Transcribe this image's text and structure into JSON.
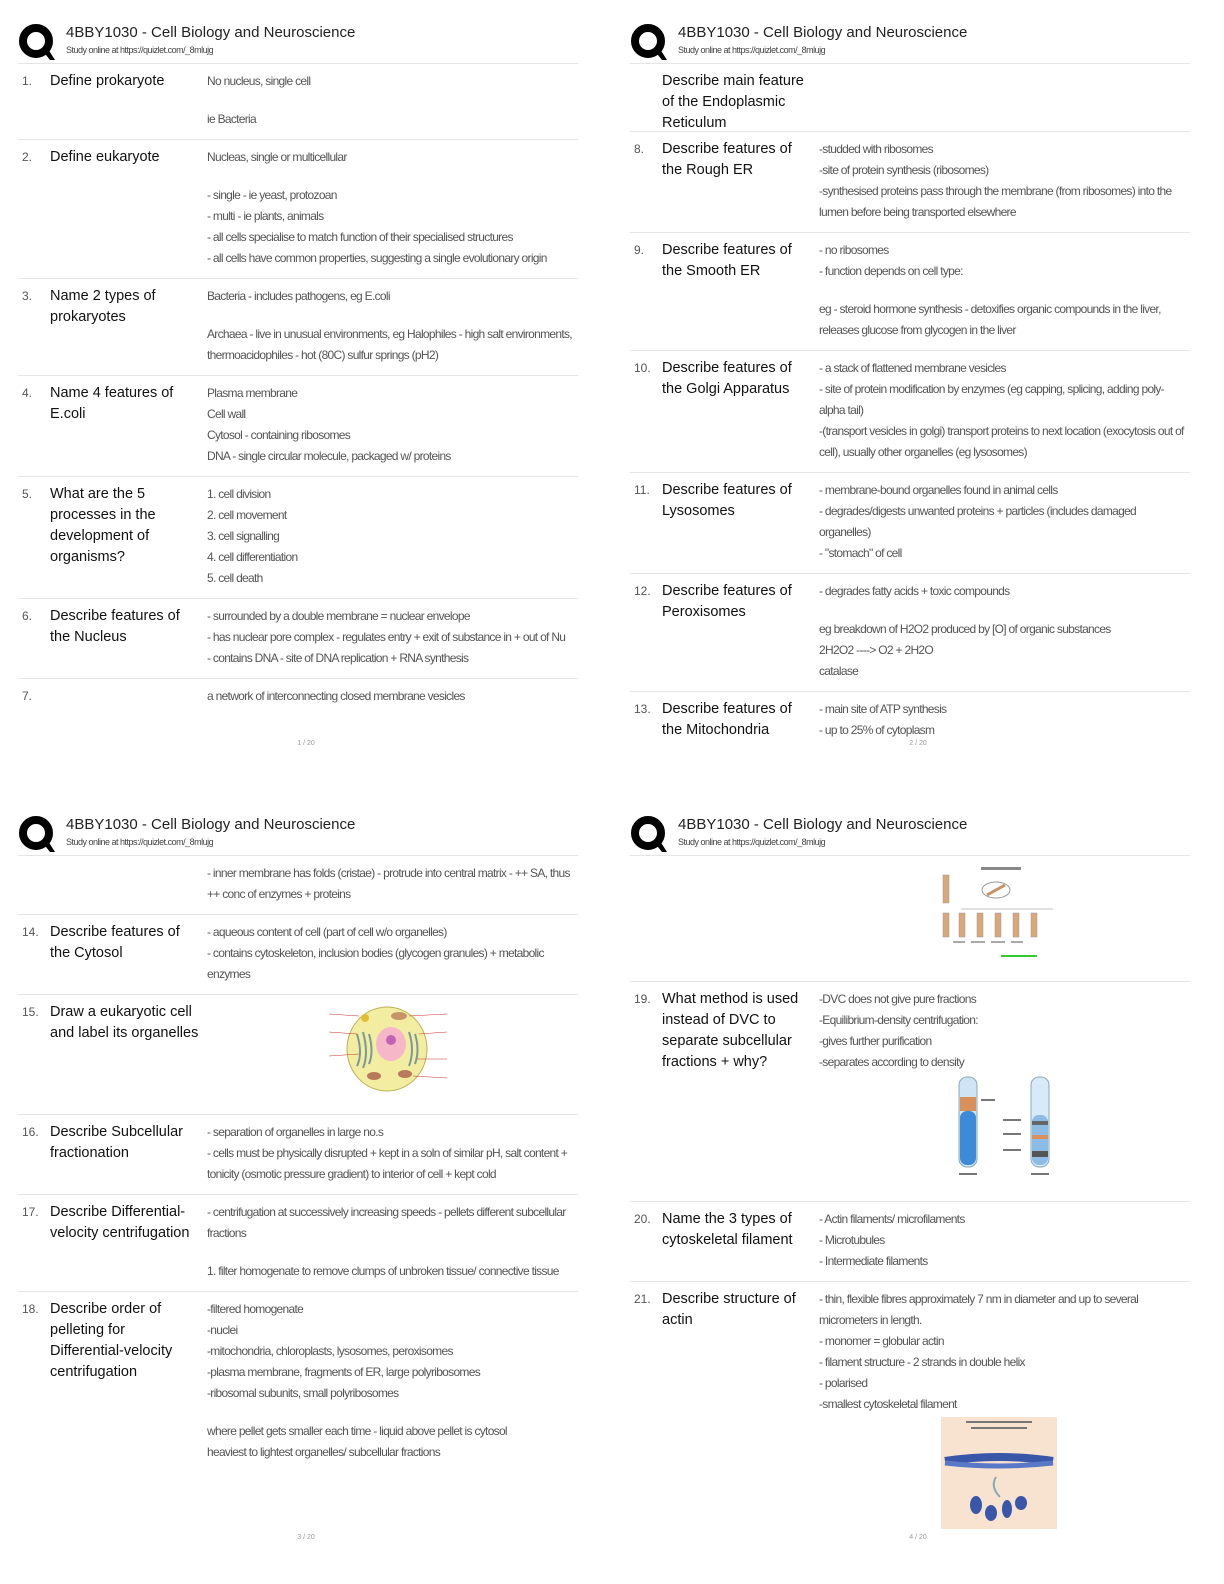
{
  "document": {
    "colors": {
      "text": "#111111",
      "answer": "#555555",
      "divider": "#e6e6e6",
      "logo": "#000000"
    },
    "pages": [
      {
        "header": {
          "title": "4BBY1030 - Cell Biology and Neuroscience",
          "subtitle": "Study online at https://quizlet.com/_8mlujg",
          "logo_icon": "quizlet-q-logo"
        },
        "page_number": "1 / 20",
        "rows": [
          {
            "num": "1.",
            "question": "Define prokaryote",
            "answer": [
              "No nucleus, single cell",
              "",
              "ie Bacteria"
            ]
          },
          {
            "num": "2.",
            "question": "Define eukaryote",
            "answer": [
              "Nucleas, single or multicellular",
              "",
              "- single - ie yeast, protozoan",
              "- multi - ie plants, animals",
              "- all cells specialise to match function of their specialised structures",
              "- all cells have common properties, suggesting a single evolutionary origin"
            ]
          },
          {
            "num": "3.",
            "question": "Name 2 types of prokaryotes",
            "answer": [
              "Bacteria - includes pathogens, eg E.coli",
              "",
              "Archaea - live in unusual environments, eg Halophiles - high salt environments, thermoacidophiles - hot (80C) sulfur springs (pH2)"
            ]
          },
          {
            "num": "4.",
            "question": "Name 4 features of E.coli",
            "answer": [
              "Plasma membrane",
              "Cell wall",
              "Cytosol - containing ribosomes",
              "DNA - single circular molecule, packaged w/ proteins"
            ]
          },
          {
            "num": "5.",
            "question": "What are the 5 processes in the development of organisms?",
            "answer": [
              "1. cell division",
              "2. cell movement",
              "3. cell signalling",
              "4. cell differentiation",
              "5. cell death"
            ]
          },
          {
            "num": "6.",
            "question": "Describe features of the Nucleus",
            "answer": [
              "- surrounded by a double membrane = nuclear envelope",
              "- has nuclear pore complex - regulates entry + exit of substance in + out of Nu",
              "- contains DNA - site of DNA replication + RNA synthesis"
            ]
          },
          {
            "num": "7.",
            "question": "",
            "answer": [
              "a network of interconnecting closed membrane vesicles"
            ]
          }
        ]
      },
      {
        "header": {
          "title": "4BBY1030 - Cell Biology and Neuroscience",
          "subtitle": "Study online at https://quizlet.com/_8mlujg",
          "logo_icon": "quizlet-q-logo"
        },
        "page_number": "2 / 20",
        "rows": [
          {
            "num": "",
            "question": "Describe main feature of the Endoplasmic Reticulum",
            "answer": [
              "",
              "",
              ""
            ]
          },
          {
            "num": "8.",
            "question": "Describe features of the Rough ER",
            "answer": [
              "-studded with ribosomes",
              "-site of protein synthesis (ribosomes)",
              "-synthesised proteins pass through the membrane (from ribosomes) into the lumen before being transported elsewhere"
            ]
          },
          {
            "num": "9.",
            "question": "Describe features of the Smooth ER",
            "answer": [
              "- no ribosomes",
              "- function depends on cell type:",
              "",
              "eg - steroid hormone synthesis - detoxifies organic compounds in the liver, releases glucose from glycogen in the liver"
            ]
          },
          {
            "num": "10.",
            "question": "Describe features of the Golgi Apparatus",
            "answer": [
              "- a stack of flattened membrane vesicles",
              "- site of protein modification by enzymes (eg capping, splicing, adding poly-alpha tail)",
              "-(transport vesicles in golgi) transport proteins to next location (exocytosis out of cell), usually other organelles (eg lysosomes)"
            ]
          },
          {
            "num": "11.",
            "question": "Describe features of Lysosomes",
            "answer": [
              "- membrane-bound organelles found in animal cells",
              "- degrades/digests unwanted proteins + particles (includes damaged organelles)",
              "- \"stomach\" of cell"
            ]
          },
          {
            "num": "12.",
            "question": "Describe features of Peroxisomes",
            "answer": [
              "- degrades fatty acids + toxic compounds",
              "",
              "eg breakdown of H2O2 produced by [O] of organic substances",
              "2H2O2 ----> O2 + 2H2O",
              " catalase"
            ]
          },
          {
            "num": "13.",
            "question": "Describe features of the Mitochondria",
            "answer": [
              "- main site of ATP synthesis",
              "- up to 25% of cytoplasm"
            ]
          }
        ]
      },
      {
        "header": {
          "title": "4BBY1030 - Cell Biology and Neuroscience",
          "subtitle": "Study online at https://quizlet.com/_8mlujg",
          "logo_icon": "quizlet-q-logo"
        },
        "page_number": "3 / 20",
        "rows": [
          {
            "num": "",
            "question": "",
            "answer": [
              "- inner membrane has folds (cristae) - protrude into central matrix - ++ SA, thus ++ conc of enzymes + proteins"
            ]
          },
          {
            "num": "14.",
            "question": "Describe features of the Cytosol",
            "answer": [
              "- aqueous content of cell (part of cell w/o organelles)",
              "- contains cytoskeleton, inclusion bodies (glycogen granules) + metabolic enzymes"
            ]
          },
          {
            "num": "15.",
            "question": "Draw a eukaryotic cell and label its organelles",
            "answer": [],
            "image": "eukaryotic-cell-diagram"
          },
          {
            "num": "16.",
            "question": "Describe Subcellular fractionation",
            "answer": [
              "- separation of organelles in large no.s",
              "- cells must be physically disrupted + kept in a soln of similar pH, salt content + tonicity (osmotic pressure gradient) to interior of cell + kept cold"
            ]
          },
          {
            "num": "17.",
            "question": "Describe Differential-velocity centrifugation",
            "answer": [
              "- centrifugation at successively increasing speeds - pellets different subcellular fractions",
              "",
              "1. filter homogenate to remove clumps of unbroken tissue/ connective tissue"
            ]
          },
          {
            "num": "18.",
            "question": "Describe order of pelleting for Differential-velocity centrifugation",
            "answer": [
              "-filtered homogenate",
              "-nuclei",
              "-mitochondria, chloroplasts, lysosomes, peroxisomes",
              "-plasma membrane, fragments of ER, large polyribosomes",
              "-ribosomal subunits, small polyribosomes",
              "",
              "where pellet gets smaller each time - liquid above pellet is cytosol",
              "heaviest to lightest organelles/ subcellular fractions"
            ]
          }
        ]
      },
      {
        "header": {
          "title": "4BBY1030 - Cell Biology and Neuroscience",
          "subtitle": "Study online at https://quizlet.com/_8mlujg",
          "logo_icon": "quizlet-q-logo"
        },
        "page_number": "4 / 20",
        "rows": [
          {
            "num": "",
            "question": "",
            "answer": [],
            "image": "differential-velocity-centrifugation-diagram"
          },
          {
            "num": "19.",
            "question": "What method is used instead of DVC to separate subcellular fractions + why?",
            "answer": [
              "-DVC does not give pure fractions",
              "-Equilibrium-density centrifugation:",
              "-gives further purification",
              "-separates according to density"
            ],
            "image": "density-gradient-tubes-diagram"
          },
          {
            "num": "20.",
            "question": "Name the 3 types of cytoskeletal filament",
            "answer": [
              "- Actin filaments/ microfilaments",
              "- Microtubules",
              "- Intermediate filaments"
            ]
          },
          {
            "num": "21.",
            "question": "Describe structure of actin",
            "answer": [
              "- thin, flexible fibres approximately 7 nm in diameter and up to several micrometers in length.",
              "- monomer = globular actin",
              "- filament structure - 2 strands in double helix",
              "- polarised",
              "-smallest cytoskeletal filament"
            ],
            "image": "actin-filament-diagram"
          }
        ]
      }
    ]
  }
}
